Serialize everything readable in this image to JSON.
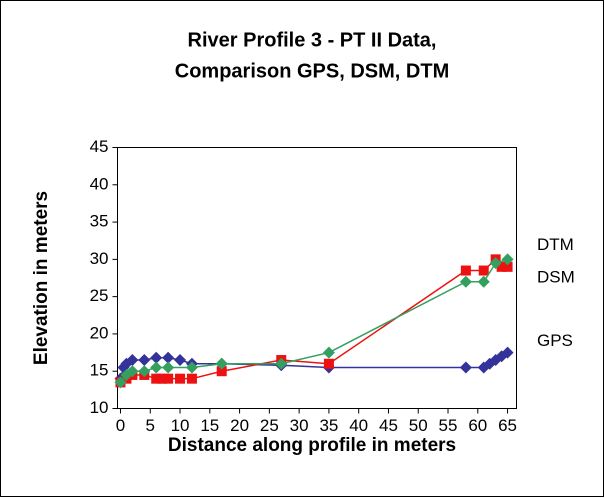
{
  "chart_data": {
    "type": "line",
    "title": [
      "River Profile 3 - PT II Data,",
      "Comparison GPS, DSM, DTM"
    ],
    "x_label": "Distance along profile in meters",
    "y_label": "Elevation in meters",
    "xlim": [
      -0.5,
      66.5
    ],
    "xticks": [
      0,
      5,
      10,
      15,
      20,
      25,
      30,
      35,
      40,
      45,
      50,
      55,
      60,
      65
    ],
    "ylim": [
      10,
      45
    ],
    "yticks": [
      10,
      15,
      20,
      25,
      30,
      35,
      40,
      45
    ],
    "grid": false,
    "series": [
      {
        "name": "GPS",
        "color": "#33339a",
        "marker": "diamond",
        "x": [
          0,
          0.5,
          1,
          2,
          4,
          6,
          8,
          10,
          12,
          17,
          27,
          35,
          58,
          61,
          62,
          63,
          64,
          65
        ],
        "values": [
          14,
          15.5,
          16,
          16.5,
          16.5,
          16.8,
          16.8,
          16.5,
          16,
          16,
          15.8,
          15.5,
          15.5,
          15.5,
          16,
          16.5,
          17,
          17.5
        ]
      },
      {
        "name": "DSM",
        "color": "#ee1111",
        "marker": "square",
        "x": [
          0,
          1,
          2,
          4,
          6,
          7,
          8,
          10,
          12,
          17,
          27,
          35,
          58,
          61,
          63,
          64,
          65
        ],
        "values": [
          13.5,
          14,
          14.5,
          14.5,
          14,
          14,
          14,
          14,
          14,
          15,
          16.5,
          16,
          28.5,
          28.5,
          30,
          29,
          29
        ]
      },
      {
        "name": "DTM",
        "color": "#33a060",
        "marker": "diamond",
        "x": [
          0,
          1,
          2,
          4,
          6,
          8,
          12,
          17,
          27,
          35,
          58,
          61,
          63,
          65
        ],
        "values": [
          13.5,
          14.5,
          15,
          15,
          15.5,
          15.5,
          15.5,
          16,
          16,
          17.5,
          27,
          27,
          29.5,
          30
        ]
      }
    ]
  }
}
